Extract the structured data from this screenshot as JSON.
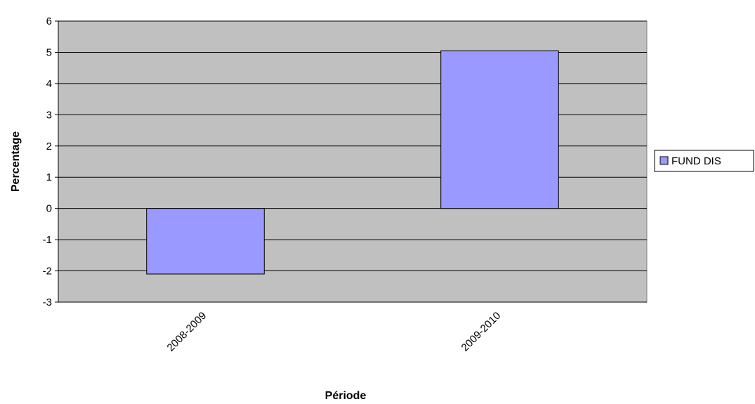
{
  "chart_data": {
    "type": "bar",
    "categories": [
      "2008-2009",
      "2009-2010"
    ],
    "series": [
      {
        "name": "FUND DIS",
        "values": [
          -2.1,
          5.05
        ]
      }
    ],
    "title": "",
    "xlabel": "Période",
    "ylabel": "Percentage",
    "ylim": [
      -3,
      6
    ],
    "yticks": [
      6,
      5,
      4,
      3,
      2,
      1,
      0,
      -1,
      -2,
      -3
    ],
    "grid": true,
    "legend": "right",
    "colors": {
      "plot_background": "#c0c0c0",
      "bar_fill": "#9999ff",
      "bar_stroke": "#000000",
      "gridline": "#000000"
    }
  }
}
